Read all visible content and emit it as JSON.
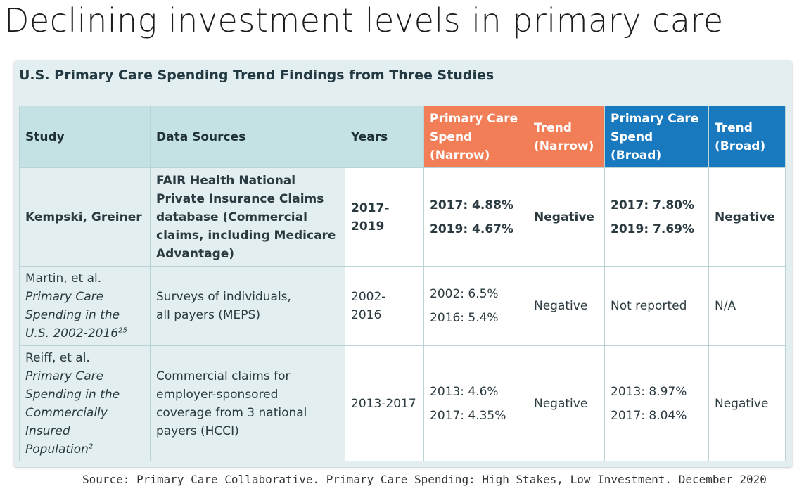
{
  "slide_title": "Declining investment levels in primary care",
  "card_title": "U.S. Primary Care Spending Trend Findings from Three Studies",
  "colors": {
    "narrow_header": "#f27e57",
    "broad_header": "#1879bf",
    "base_header": "#c4e2e4",
    "card_bg": "#e2eeef"
  },
  "headers": {
    "study": "Study",
    "data_sources": "Data Sources",
    "years": "Years",
    "narrow_spend": [
      "Primary Care",
      "Spend",
      "(Narrow)"
    ],
    "narrow_trend": [
      "Trend",
      "(Narrow)"
    ],
    "broad_spend": [
      "Primary Care",
      "Spend",
      "(Broad)"
    ],
    "broad_trend": [
      "Trend",
      "(Broad)"
    ]
  },
  "rows": [
    {
      "study": "Kempski, Greiner",
      "sources": [
        "FAIR Health National",
        "Private Insurance Claims",
        "database (Commercial",
        "claims, including Medicare",
        "Advantage)"
      ],
      "years": "2017-2019",
      "narrow": [
        "2017: 4.88%",
        "2019: 4.67%"
      ],
      "trend_narrow": "Negative",
      "broad": [
        "2017: 7.80%",
        "2019: 7.69%"
      ],
      "trend_broad": "Negative"
    },
    {
      "study_author": "Martin, et al.",
      "study_title": [
        "Primary Care",
        "Spending in the",
        "U.S. 2002-2016"
      ],
      "study_ref": "25",
      "sources": [
        "Surveys of individuals,",
        "all payers (MEPS)"
      ],
      "years": [
        "2002-",
        "2016"
      ],
      "narrow": [
        "2002: 6.5%",
        "2016: 5.4%"
      ],
      "trend_narrow": "Negative",
      "broad": "Not reported",
      "trend_broad": "N/A"
    },
    {
      "study_author": "Reiff, et al.",
      "study_title": [
        "Primary Care",
        "Spending in the",
        "Commercially",
        "Insured",
        "Population"
      ],
      "study_ref": "2",
      "sources": [
        "Commercial claims for",
        "employer-sponsored",
        "coverage from 3 national",
        "payers (HCCI)"
      ],
      "years": "2013-2017",
      "narrow": [
        "2013: 4.6%",
        "2017: 4.35%"
      ],
      "trend_narrow": "Negative",
      "broad": [
        "2013: 8.97%",
        "2017: 8.04%"
      ],
      "trend_broad": "Negative"
    }
  ],
  "source_note": "Source: Primary Care Collaborative. Primary Care Spending: High Stakes, Low Investment. December 2020"
}
